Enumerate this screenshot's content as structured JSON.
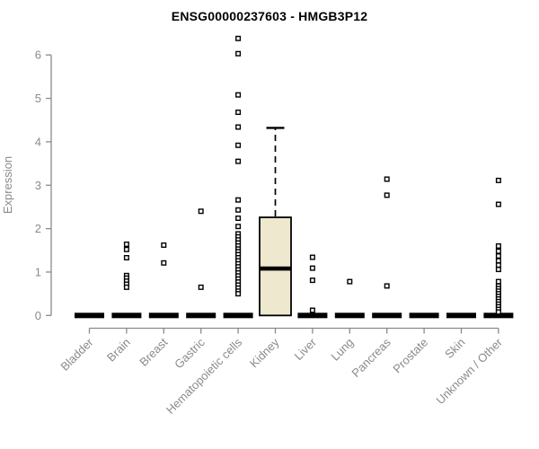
{
  "page": {
    "background": "#ffffff"
  },
  "chart_data": {
    "type": "boxplot",
    "title": "ENSG00000237603 - HMGB3P12",
    "xlabel": "",
    "ylabel": "Expression",
    "ylim": [
      0,
      6.5
    ],
    "yticks": [
      0,
      1,
      2,
      3,
      4,
      5,
      6
    ],
    "grid": false,
    "legend": "none",
    "box_fill": "#EDE8CE",
    "box_stroke": "#000000",
    "axis_color": "#8a8a8a",
    "outlier_marker": "open-square",
    "categories": [
      "Bladder",
      "Brain",
      "Breast",
      "Gastric",
      "Hematopoietic cells",
      "Kidney",
      "Liver",
      "Lung",
      "Pancreas",
      "Prostate",
      "Skin",
      "Unknown / Other"
    ],
    "boxes": [
      {
        "category": "Bladder",
        "q1": 0,
        "median": 0,
        "q3": 0,
        "whisker_low": 0,
        "whisker_high": 0,
        "outliers": []
      },
      {
        "category": "Brain",
        "q1": 0,
        "median": 0,
        "q3": 0,
        "whisker_low": 0,
        "whisker_high": 0,
        "outliers": [
          1.64,
          1.52,
          1.33,
          0.92,
          0.86,
          0.79,
          0.72,
          0.65
        ]
      },
      {
        "category": "Breast",
        "q1": 0,
        "median": 0,
        "q3": 0,
        "whisker_low": 0,
        "whisker_high": 0,
        "outliers": [
          1.62,
          1.21
        ]
      },
      {
        "category": "Gastric",
        "q1": 0,
        "median": 0,
        "q3": 0,
        "whisker_low": 0,
        "whisker_high": 0,
        "outliers": [
          2.4,
          0.65
        ]
      },
      {
        "category": "Hematopoietic cells",
        "q1": 0,
        "median": 0,
        "q3": 0,
        "whisker_low": 0,
        "whisker_high": 0,
        "outliers": [
          6.38,
          6.03,
          5.08,
          4.68,
          4.34,
          3.92,
          3.55,
          2.66,
          2.43,
          2.24,
          2.05,
          1.88,
          1.81,
          1.74,
          1.67,
          1.6,
          1.53,
          1.47,
          1.4,
          1.33,
          1.26,
          1.19,
          1.12,
          1.05,
          0.98,
          0.91,
          0.84,
          0.77,
          0.7,
          0.63,
          0.56,
          0.5
        ]
      },
      {
        "category": "Kidney",
        "q1": 0,
        "median": 1.08,
        "q3": 2.26,
        "whisker_low": 0,
        "whisker_high": 4.32,
        "outliers": []
      },
      {
        "category": "Liver",
        "q1": 0,
        "median": 0,
        "q3": 0,
        "whisker_low": 0,
        "whisker_high": 0,
        "outliers": [
          1.34,
          1.09,
          0.81,
          0.12
        ]
      },
      {
        "category": "Lung",
        "q1": 0,
        "median": 0,
        "q3": 0,
        "whisker_low": 0,
        "whisker_high": 0,
        "outliers": [
          0.78
        ]
      },
      {
        "category": "Pancreas",
        "q1": 0,
        "median": 0,
        "q3": 0,
        "whisker_low": 0,
        "whisker_high": 0,
        "outliers": [
          3.14,
          2.77,
          0.68
        ]
      },
      {
        "category": "Prostate",
        "q1": 0,
        "median": 0,
        "q3": 0,
        "whisker_low": 0,
        "whisker_high": 0,
        "outliers": []
      },
      {
        "category": "Skin",
        "q1": 0,
        "median": 0,
        "q3": 0,
        "whisker_low": 0,
        "whisker_high": 0,
        "outliers": []
      },
      {
        "category": "Unknown / Other",
        "q1": 0,
        "median": 0,
        "q3": 0,
        "whisker_low": 0,
        "whisker_high": 0,
        "outliers": [
          3.11,
          2.56,
          1.6,
          1.48,
          1.37,
          1.26,
          1.16,
          1.06,
          0.78,
          0.68,
          0.62,
          0.56,
          0.5,
          0.44,
          0.38,
          0.32,
          0.26,
          0.2,
          0.14,
          0.08
        ]
      }
    ]
  }
}
